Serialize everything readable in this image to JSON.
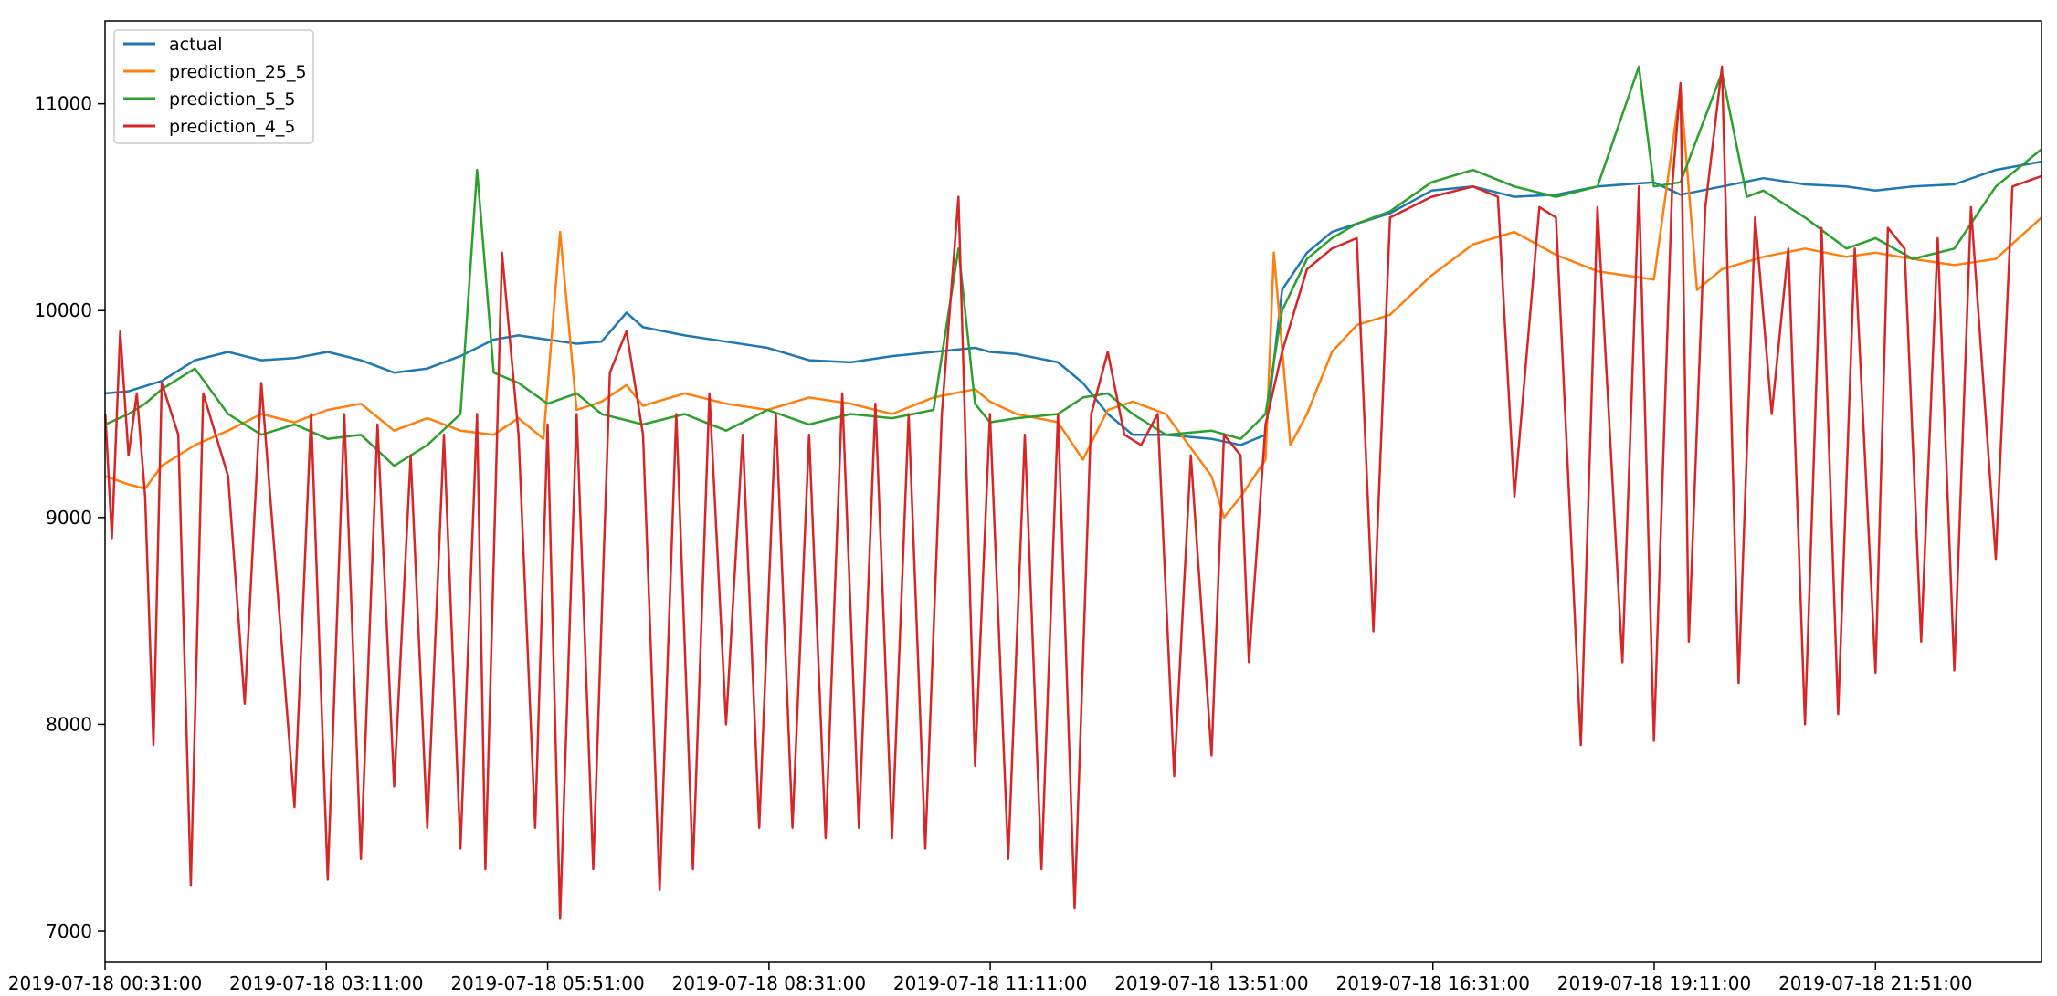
{
  "chart_data": {
    "type": "line",
    "title": "",
    "xlabel": "",
    "ylabel": "",
    "x_tick_labels": [
      "2019-07-18 00:31:00",
      "2019-07-18 03:11:00",
      "2019-07-18 05:51:00",
      "2019-07-18 08:31:00",
      "2019-07-18 11:11:00",
      "2019-07-18 13:51:00",
      "2019-07-18 16:31:00",
      "2019-07-18 19:11:00",
      "2019-07-18 21:51:00"
    ],
    "x_tick_hours": [
      0.517,
      3.183,
      5.85,
      8.517,
      11.183,
      13.85,
      16.517,
      19.183,
      21.85
    ],
    "xlim_hours": [
      0.517,
      23.85
    ],
    "ylim": [
      6850,
      11400
    ],
    "y_ticks": [
      7000,
      8000,
      9000,
      10000,
      11000
    ],
    "grid": false,
    "legend_position": "upper left",
    "series": [
      {
        "name": "actual",
        "color": "#1f77b4",
        "points": [
          [
            0.52,
            9600
          ],
          [
            0.8,
            9610
          ],
          [
            1.2,
            9660
          ],
          [
            1.6,
            9760
          ],
          [
            2.0,
            9800
          ],
          [
            2.4,
            9760
          ],
          [
            2.8,
            9770
          ],
          [
            3.2,
            9800
          ],
          [
            3.6,
            9760
          ],
          [
            4.0,
            9700
          ],
          [
            4.4,
            9720
          ],
          [
            4.8,
            9780
          ],
          [
            5.2,
            9860
          ],
          [
            5.5,
            9880
          ],
          [
            5.85,
            9860
          ],
          [
            6.2,
            9840
          ],
          [
            6.5,
            9850
          ],
          [
            6.8,
            9990
          ],
          [
            7.0,
            9920
          ],
          [
            7.5,
            9880
          ],
          [
            8.0,
            9850
          ],
          [
            8.5,
            9820
          ],
          [
            9.0,
            9760
          ],
          [
            9.5,
            9750
          ],
          [
            10.0,
            9780
          ],
          [
            10.5,
            9800
          ],
          [
            11.0,
            9820
          ],
          [
            11.18,
            9800
          ],
          [
            11.5,
            9790
          ],
          [
            12.0,
            9750
          ],
          [
            12.3,
            9650
          ],
          [
            12.6,
            9500
          ],
          [
            12.9,
            9400
          ],
          [
            13.3,
            9400
          ],
          [
            13.85,
            9380
          ],
          [
            14.2,
            9350
          ],
          [
            14.5,
            9400
          ],
          [
            14.7,
            10100
          ],
          [
            15.0,
            10280
          ],
          [
            15.3,
            10380
          ],
          [
            15.6,
            10420
          ],
          [
            16.0,
            10470
          ],
          [
            16.5,
            10580
          ],
          [
            17.0,
            10600
          ],
          [
            17.5,
            10550
          ],
          [
            18.0,
            10560
          ],
          [
            18.5,
            10600
          ],
          [
            19.18,
            10620
          ],
          [
            19.5,
            10560
          ],
          [
            20.0,
            10600
          ],
          [
            20.5,
            10640
          ],
          [
            21.0,
            10610
          ],
          [
            21.5,
            10600
          ],
          [
            21.85,
            10580
          ],
          [
            22.3,
            10600
          ],
          [
            22.8,
            10610
          ],
          [
            23.3,
            10680
          ],
          [
            23.85,
            10720
          ]
        ]
      },
      {
        "name": "prediction_25_5",
        "color": "#ff7f0e",
        "points": [
          [
            0.52,
            9200
          ],
          [
            0.8,
            9160
          ],
          [
            1.0,
            9140
          ],
          [
            1.2,
            9250
          ],
          [
            1.6,
            9350
          ],
          [
            2.0,
            9420
          ],
          [
            2.4,
            9500
          ],
          [
            2.8,
            9460
          ],
          [
            3.2,
            9520
          ],
          [
            3.6,
            9550
          ],
          [
            4.0,
            9420
          ],
          [
            4.4,
            9480
          ],
          [
            4.8,
            9420
          ],
          [
            5.2,
            9400
          ],
          [
            5.5,
            9480
          ],
          [
            5.8,
            9380
          ],
          [
            6.0,
            10380
          ],
          [
            6.2,
            9520
          ],
          [
            6.5,
            9560
          ],
          [
            6.8,
            9640
          ],
          [
            7.0,
            9540
          ],
          [
            7.5,
            9600
          ],
          [
            8.0,
            9550
          ],
          [
            8.5,
            9520
          ],
          [
            9.0,
            9580
          ],
          [
            9.5,
            9550
          ],
          [
            10.0,
            9500
          ],
          [
            10.5,
            9580
          ],
          [
            11.0,
            9620
          ],
          [
            11.18,
            9560
          ],
          [
            11.5,
            9500
          ],
          [
            12.0,
            9460
          ],
          [
            12.3,
            9280
          ],
          [
            12.6,
            9520
          ],
          [
            12.9,
            9560
          ],
          [
            13.3,
            9500
          ],
          [
            13.85,
            9200
          ],
          [
            14.0,
            9000
          ],
          [
            14.2,
            9100
          ],
          [
            14.5,
            9280
          ],
          [
            14.6,
            10280
          ],
          [
            14.8,
            9350
          ],
          [
            15.0,
            9500
          ],
          [
            15.3,
            9800
          ],
          [
            15.6,
            9930
          ],
          [
            16.0,
            9980
          ],
          [
            16.5,
            10170
          ],
          [
            17.0,
            10320
          ],
          [
            17.5,
            10380
          ],
          [
            18.0,
            10270
          ],
          [
            18.5,
            10190
          ],
          [
            19.18,
            10150
          ],
          [
            19.5,
            11080
          ],
          [
            19.7,
            10100
          ],
          [
            20.0,
            10200
          ],
          [
            20.5,
            10260
          ],
          [
            21.0,
            10300
          ],
          [
            21.5,
            10260
          ],
          [
            21.85,
            10280
          ],
          [
            22.3,
            10250
          ],
          [
            22.8,
            10220
          ],
          [
            23.3,
            10250
          ],
          [
            23.85,
            10450
          ]
        ]
      },
      {
        "name": "prediction_5_5",
        "color": "#2ca02c",
        "points": [
          [
            0.52,
            9450
          ],
          [
            0.8,
            9500
          ],
          [
            1.0,
            9550
          ],
          [
            1.2,
            9620
          ],
          [
            1.6,
            9720
          ],
          [
            2.0,
            9500
          ],
          [
            2.4,
            9400
          ],
          [
            2.8,
            9450
          ],
          [
            3.2,
            9380
          ],
          [
            3.6,
            9400
          ],
          [
            4.0,
            9250
          ],
          [
            4.4,
            9350
          ],
          [
            4.8,
            9500
          ],
          [
            5.0,
            10680
          ],
          [
            5.2,
            9700
          ],
          [
            5.5,
            9650
          ],
          [
            5.85,
            9550
          ],
          [
            6.2,
            9600
          ],
          [
            6.5,
            9500
          ],
          [
            7.0,
            9450
          ],
          [
            7.5,
            9500
          ],
          [
            8.0,
            9420
          ],
          [
            8.5,
            9520
          ],
          [
            9.0,
            9450
          ],
          [
            9.5,
            9500
          ],
          [
            10.0,
            9480
          ],
          [
            10.5,
            9520
          ],
          [
            10.8,
            10300
          ],
          [
            11.0,
            9550
          ],
          [
            11.18,
            9460
          ],
          [
            11.5,
            9480
          ],
          [
            12.0,
            9500
          ],
          [
            12.3,
            9580
          ],
          [
            12.6,
            9600
          ],
          [
            12.9,
            9500
          ],
          [
            13.3,
            9400
          ],
          [
            13.85,
            9420
          ],
          [
            14.2,
            9380
          ],
          [
            14.5,
            9500
          ],
          [
            14.7,
            10000
          ],
          [
            15.0,
            10250
          ],
          [
            15.3,
            10350
          ],
          [
            15.6,
            10420
          ],
          [
            16.0,
            10480
          ],
          [
            16.5,
            10620
          ],
          [
            17.0,
            10680
          ],
          [
            17.5,
            10600
          ],
          [
            18.0,
            10550
          ],
          [
            18.5,
            10600
          ],
          [
            19.0,
            11180
          ],
          [
            19.18,
            10600
          ],
          [
            19.5,
            10620
          ],
          [
            20.0,
            11150
          ],
          [
            20.3,
            10550
          ],
          [
            20.5,
            10580
          ],
          [
            21.0,
            10450
          ],
          [
            21.5,
            10300
          ],
          [
            21.85,
            10350
          ],
          [
            22.3,
            10250
          ],
          [
            22.8,
            10300
          ],
          [
            23.3,
            10600
          ],
          [
            23.85,
            10780
          ]
        ]
      },
      {
        "name": "prediction_4_5",
        "color": "#d62728",
        "points": [
          [
            0.52,
            9500
          ],
          [
            0.6,
            8900
          ],
          [
            0.7,
            9900
          ],
          [
            0.8,
            9300
          ],
          [
            0.9,
            9600
          ],
          [
            1.0,
            9100
          ],
          [
            1.1,
            7900
          ],
          [
            1.2,
            9650
          ],
          [
            1.4,
            9400
          ],
          [
            1.55,
            7220
          ],
          [
            1.7,
            9600
          ],
          [
            2.0,
            9200
          ],
          [
            2.2,
            8100
          ],
          [
            2.4,
            9650
          ],
          [
            2.8,
            7600
          ],
          [
            3.0,
            9500
          ],
          [
            3.2,
            7250
          ],
          [
            3.4,
            9500
          ],
          [
            3.6,
            7350
          ],
          [
            3.8,
            9450
          ],
          [
            4.0,
            7700
          ],
          [
            4.2,
            9300
          ],
          [
            4.4,
            7500
          ],
          [
            4.6,
            9400
          ],
          [
            4.8,
            7400
          ],
          [
            5.0,
            9500
          ],
          [
            5.1,
            7300
          ],
          [
            5.3,
            10280
          ],
          [
            5.5,
            9400
          ],
          [
            5.7,
            7500
          ],
          [
            5.85,
            9450
          ],
          [
            6.0,
            7060
          ],
          [
            6.2,
            9500
          ],
          [
            6.4,
            7300
          ],
          [
            6.6,
            9700
          ],
          [
            6.8,
            9900
          ],
          [
            7.0,
            9400
          ],
          [
            7.2,
            7200
          ],
          [
            7.4,
            9500
          ],
          [
            7.6,
            7300
          ],
          [
            7.8,
            9600
          ],
          [
            8.0,
            8000
          ],
          [
            8.2,
            9400
          ],
          [
            8.4,
            7500
          ],
          [
            8.6,
            9500
          ],
          [
            8.8,
            7500
          ],
          [
            9.0,
            9400
          ],
          [
            9.2,
            7450
          ],
          [
            9.4,
            9600
          ],
          [
            9.6,
            7500
          ],
          [
            9.8,
            9550
          ],
          [
            10.0,
            7450
          ],
          [
            10.2,
            9500
          ],
          [
            10.4,
            7400
          ],
          [
            10.6,
            9500
          ],
          [
            10.8,
            10550
          ],
          [
            11.0,
            7800
          ],
          [
            11.18,
            9500
          ],
          [
            11.4,
            7350
          ],
          [
            11.6,
            9400
          ],
          [
            11.8,
            7300
          ],
          [
            12.0,
            9500
          ],
          [
            12.2,
            7110
          ],
          [
            12.4,
            9500
          ],
          [
            12.6,
            9800
          ],
          [
            12.8,
            9400
          ],
          [
            13.0,
            9350
          ],
          [
            13.2,
            9500
          ],
          [
            13.4,
            7750
          ],
          [
            13.6,
            9300
          ],
          [
            13.85,
            7850
          ],
          [
            14.0,
            9400
          ],
          [
            14.2,
            9300
          ],
          [
            14.3,
            8300
          ],
          [
            14.5,
            9450
          ],
          [
            14.7,
            9800
          ],
          [
            15.0,
            10200
          ],
          [
            15.3,
            10300
          ],
          [
            15.6,
            10350
          ],
          [
            15.8,
            8450
          ],
          [
            16.0,
            10450
          ],
          [
            16.5,
            10550
          ],
          [
            17.0,
            10600
          ],
          [
            17.3,
            10550
          ],
          [
            17.5,
            9100
          ],
          [
            17.8,
            10500
          ],
          [
            18.0,
            10450
          ],
          [
            18.3,
            7900
          ],
          [
            18.5,
            10500
          ],
          [
            18.8,
            8300
          ],
          [
            19.0,
            10600
          ],
          [
            19.18,
            7920
          ],
          [
            19.4,
            10600
          ],
          [
            19.5,
            11100
          ],
          [
            19.6,
            8400
          ],
          [
            19.8,
            10500
          ],
          [
            20.0,
            11180
          ],
          [
            20.2,
            8200
          ],
          [
            20.4,
            10450
          ],
          [
            20.6,
            9500
          ],
          [
            20.8,
            10300
          ],
          [
            21.0,
            8000
          ],
          [
            21.2,
            10400
          ],
          [
            21.4,
            8050
          ],
          [
            21.6,
            10300
          ],
          [
            21.85,
            8250
          ],
          [
            22.0,
            10400
          ],
          [
            22.2,
            10300
          ],
          [
            22.4,
            8400
          ],
          [
            22.6,
            10350
          ],
          [
            22.8,
            8260
          ],
          [
            23.0,
            10500
          ],
          [
            23.3,
            8800
          ],
          [
            23.5,
            10600
          ],
          [
            23.85,
            10650
          ]
        ]
      }
    ]
  }
}
